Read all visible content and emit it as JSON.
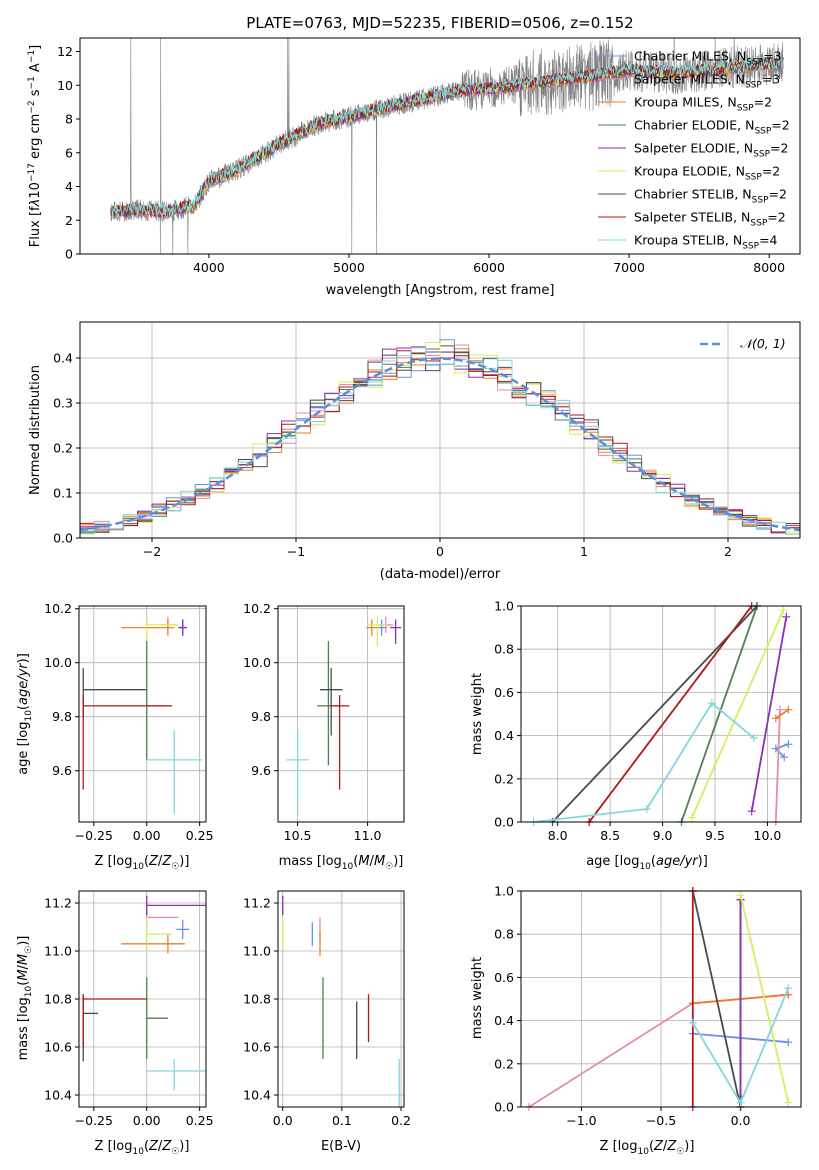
{
  "title": "PLATE=0763, MJD=52235, FIBERID=0506, z=0.152",
  "models": [
    {
      "name": "Chabrier MILES",
      "nssp": "3",
      "color": "#6f8fe0"
    },
    {
      "name": "Salpeter MILES",
      "nssp": "3",
      "color": "#e68ab4"
    },
    {
      "name": "Kroupa MILES",
      "nssp": "2",
      "color": "#ee7e2e"
    },
    {
      "name": "Chabrier ELODIE",
      "nssp": "2",
      "color": "#4f7f4f"
    },
    {
      "name": "Salpeter ELODIE",
      "nssp": "2",
      "color": "#8c2fb0"
    },
    {
      "name": "Kroupa ELODIE",
      "nssp": "2",
      "color": "#d8ec5c"
    },
    {
      "name": "Chabrier STELIB",
      "nssp": "2",
      "color": "#4a4a4a"
    },
    {
      "name": "Salpeter STELIB",
      "nssp": "2",
      "color": "#b01818"
    },
    {
      "name": "Kroupa STELIB",
      "nssp": "4",
      "color": "#7fd8dc"
    }
  ],
  "chart_data": [
    {
      "id": "spectrum",
      "type": "line",
      "xlabel": "wavelength [Angstrom, rest frame]",
      "ylabel": "Flux [f_λ 10^-17 erg cm^-2 s^-1 A^-1]",
      "xlim": [
        3080,
        8220
      ],
      "ylim": [
        0,
        12.8
      ],
      "xticks": [
        4000,
        5000,
        6000,
        7000,
        8000
      ],
      "yticks": [
        0,
        2,
        4,
        6,
        8,
        10,
        12
      ],
      "data_color": "#808080",
      "continuum": {
        "x": [
          3300,
          3500,
          3700,
          3900,
          4000,
          4200,
          4500,
          4800,
          5000,
          5200,
          5500,
          5800,
          6000,
          6200,
          6500,
          6800,
          7000,
          7300,
          7600,
          7900,
          8100
        ],
        "y": [
          2.5,
          2.6,
          2.5,
          2.9,
          4.3,
          5.0,
          6.5,
          7.8,
          8.1,
          8.6,
          9.1,
          9.7,
          9.8,
          10.0,
          10.3,
          10.6,
          10.9,
          10.7,
          10.9,
          11.2,
          11.3
        ]
      },
      "grid": false
    },
    {
      "id": "residuals",
      "type": "histogram",
      "xlabel": "(data-model)/error",
      "ylabel": "Normed distribution",
      "xlim": [
        -2.5,
        2.5
      ],
      "ylim": [
        0,
        0.48
      ],
      "xticks": [
        -2,
        -1,
        0,
        1,
        2
      ],
      "yticks": [
        0,
        0.1,
        0.2,
        0.3,
        0.4
      ],
      "bin_width": 0.1,
      "reference_label": "N(0,1)",
      "reference_color": "#5b8fdc",
      "grid": true
    },
    {
      "id": "age-vs-Z",
      "type": "errorbar",
      "xlabel": "Z [log10(Z/Z☉)]",
      "ylabel": "age [log10(age/yr)]",
      "xlim": [
        -0.32,
        0.28
      ],
      "ylim": [
        9.41,
        10.21
      ],
      "xticks": [
        -0.25,
        0.0,
        0.25
      ],
      "yticks": [
        9.6,
        9.8,
        10.0,
        10.2
      ],
      "points": [
        {
          "model": 0,
          "x": 0.17,
          "y": 10.13,
          "xerr": [
            0.02,
            0.02
          ],
          "yerr": [
            0.03,
            0.03
          ]
        },
        {
          "model": 1,
          "x": 0.1,
          "y": 10.14,
          "xerr": [
            0.04,
            0.04
          ],
          "yerr": [
            0.03,
            0.03
          ]
        },
        {
          "model": 2,
          "x": 0.1,
          "y": 10.13,
          "xerr": [
            0.22,
            0.03
          ],
          "yerr": [
            0.03,
            0.03
          ]
        },
        {
          "model": 3,
          "x": 0.0,
          "y": 9.84,
          "xerr": [
            0.0,
            0.1
          ],
          "yerr": [
            0.2,
            0.24
          ]
        },
        {
          "model": 4,
          "x": 0.17,
          "y": 10.13,
          "xerr": [
            0.02,
            0.02
          ],
          "yerr": [
            0.03,
            0.03
          ]
        },
        {
          "model": 5,
          "x": 0.0,
          "y": 10.14,
          "xerr": [
            0.0,
            0.15
          ],
          "yerr": [
            0.06,
            0.03
          ]
        },
        {
          "model": 6,
          "x": -0.3,
          "y": 9.9,
          "xerr": [
            0.0,
            0.3
          ],
          "yerr": [
            0.1,
            0.08
          ]
        },
        {
          "model": 7,
          "x": -0.3,
          "y": 9.84,
          "xerr": [
            0.0,
            0.42
          ],
          "yerr": [
            0.31,
            0.04
          ]
        },
        {
          "model": 8,
          "x": 0.13,
          "y": 9.64,
          "xerr": [
            0.13,
            0.13
          ],
          "yerr": [
            0.2,
            0.11
          ]
        }
      ],
      "grid": true
    },
    {
      "id": "age-vs-mass",
      "type": "errorbar",
      "xlabel": "mass [log10(M/M☉)]",
      "ylabel": "",
      "xlim": [
        10.36,
        11.26
      ],
      "ylim": [
        9.41,
        10.21
      ],
      "xticks": [
        10.5,
        11.0
      ],
      "yticks": [
        9.6,
        9.8,
        10.0,
        10.2
      ],
      "points": [
        {
          "model": 0,
          "x": 11.1,
          "y": 10.13,
          "xerr": [
            0.04,
            0.04
          ],
          "yerr": [
            0.03,
            0.03
          ]
        },
        {
          "model": 1,
          "x": 11.13,
          "y": 10.14,
          "xerr": [
            0.05,
            0.05
          ],
          "yerr": [
            0.03,
            0.03
          ]
        },
        {
          "model": 2,
          "x": 11.03,
          "y": 10.13,
          "xerr": [
            0.04,
            0.04
          ],
          "yerr": [
            0.03,
            0.03
          ]
        },
        {
          "model": 3,
          "x": 10.72,
          "y": 9.84,
          "xerr": [
            0.08,
            0.08
          ],
          "yerr": [
            0.22,
            0.24
          ]
        },
        {
          "model": 4,
          "x": 11.2,
          "y": 10.13,
          "xerr": [
            0.04,
            0.04
          ],
          "yerr": [
            0.06,
            0.03
          ]
        },
        {
          "model": 5,
          "x": 11.07,
          "y": 10.14,
          "xerr": [
            0.07,
            0.07
          ],
          "yerr": [
            0.08,
            0.03
          ]
        },
        {
          "model": 6,
          "x": 10.74,
          "y": 9.9,
          "xerr": [
            0.08,
            0.08
          ],
          "yerr": [
            0.17,
            0.08
          ]
        },
        {
          "model": 7,
          "x": 10.8,
          "y": 9.84,
          "xerr": [
            0.07,
            0.07
          ],
          "yerr": [
            0.31,
            0.04
          ]
        },
        {
          "model": 8,
          "x": 10.5,
          "y": 9.64,
          "xerr": [
            0.08,
            0.08
          ],
          "yerr": [
            0.2,
            0.11
          ]
        }
      ],
      "grid": true
    },
    {
      "id": "weight-vs-age",
      "type": "line",
      "xlabel": "age [log10(age/yr)]",
      "ylabel": "mass weight",
      "xlim": [
        7.65,
        10.32
      ],
      "ylim": [
        0,
        1
      ],
      "xticks": [
        8.0,
        8.5,
        9.0,
        9.5,
        10.0
      ],
      "yticks": [
        0,
        0.2,
        0.4,
        0.6,
        0.8,
        1.0
      ],
      "series": [
        {
          "model": 0,
          "x": [
            10.2,
            10.08,
            10.16
          ],
          "y": [
            0.36,
            0.34,
            0.3
          ]
        },
        {
          "model": 1,
          "x": [
            10.12,
            10.08
          ],
          "y": [
            0.52,
            0.0
          ]
        },
        {
          "model": 2,
          "x": [
            10.2,
            10.08
          ],
          "y": [
            0.52,
            0.48
          ]
        },
        {
          "model": 3,
          "x": [
            9.18,
            9.9
          ],
          "y": [
            0.0,
            1.0
          ]
        },
        {
          "model": 4,
          "x": [
            9.85,
            10.18
          ],
          "y": [
            0.05,
            0.95
          ]
        },
        {
          "model": 5,
          "x": [
            9.28,
            10.15
          ],
          "y": [
            0.02,
            0.98
          ]
        },
        {
          "model": 6,
          "x": [
            7.95,
            9.9
          ],
          "y": [
            0.0,
            1.0
          ]
        },
        {
          "model": 7,
          "x": [
            8.3,
            9.85
          ],
          "y": [
            0.0,
            1.0
          ]
        },
        {
          "model": 8,
          "x": [
            7.77,
            8.85,
            9.47,
            9.87
          ],
          "y": [
            0.0,
            0.06,
            0.55,
            0.39
          ]
        }
      ],
      "grid": true
    },
    {
      "id": "mass-vs-Z",
      "type": "errorbar",
      "xlabel": "Z [log10(Z/Z☉)]",
      "ylabel": "mass [log10(M/M☉)]",
      "xlim": [
        -0.32,
        0.28
      ],
      "ylim": [
        10.35,
        11.25
      ],
      "xticks": [
        -0.25,
        0.0,
        0.25
      ],
      "yticks": [
        10.4,
        10.6,
        10.8,
        11.0,
        11.2
      ],
      "points": [
        {
          "model": 0,
          "x": 0.17,
          "y": 11.09,
          "xerr": [
            0.03,
            0.03
          ],
          "yerr": [
            0.04,
            0.04
          ]
        },
        {
          "model": 1,
          "x": 0.0,
          "y": 11.14,
          "xerr": [
            0.0,
            0.15
          ],
          "yerr": [
            0.04,
            0.04
          ]
        },
        {
          "model": 2,
          "x": 0.1,
          "y": 11.03,
          "xerr": [
            0.22,
            0.08
          ],
          "yerr": [
            0.04,
            0.04
          ]
        },
        {
          "model": 3,
          "x": 0.0,
          "y": 10.72,
          "xerr": [
            0.0,
            0.1
          ],
          "yerr": [
            0.17,
            0.17
          ]
        },
        {
          "model": 4,
          "x": 0.0,
          "y": 11.19,
          "xerr": [
            0.0,
            0.3
          ],
          "yerr": [
            0.04,
            0.04
          ]
        },
        {
          "model": 5,
          "x": 0.0,
          "y": 11.07,
          "xerr": [
            0.0,
            0.12
          ],
          "yerr": [
            0.07,
            0.07
          ]
        },
        {
          "model": 6,
          "x": -0.3,
          "y": 10.74,
          "xerr": [
            0.0,
            0.07
          ],
          "yerr": [
            0.2,
            0.08
          ]
        },
        {
          "model": 7,
          "x": -0.3,
          "y": 10.8,
          "xerr": [
            0.0,
            0.3
          ],
          "yerr": [
            0.2,
            0.02
          ]
        },
        {
          "model": 8,
          "x": 0.13,
          "y": 10.5,
          "xerr": [
            0.13,
            0.15
          ],
          "yerr": [
            0.08,
            0.05
          ]
        }
      ],
      "grid": true
    },
    {
      "id": "mass-vs-ebv",
      "type": "errorbar",
      "xlabel": "E(B-V)",
      "ylabel": "",
      "xlim": [
        -0.008,
        0.205
      ],
      "ylim": [
        10.35,
        11.25
      ],
      "xticks": [
        0.0,
        0.1,
        0.2
      ],
      "yticks": [
        10.4,
        10.6,
        10.8,
        11.0,
        11.2
      ],
      "points": [
        {
          "model": 0,
          "x": 0.05,
          "y": 11.07,
          "yerr": [
            0.05,
            0.05
          ]
        },
        {
          "model": 1,
          "x": 0.063,
          "y": 11.09,
          "yerr": [
            0.05,
            0.05
          ]
        },
        {
          "model": 2,
          "x": 0.063,
          "y": 11.03,
          "yerr": [
            0.05,
            0.05
          ]
        },
        {
          "model": 3,
          "x": 0.068,
          "y": 10.72,
          "yerr": [
            0.17,
            0.17
          ]
        },
        {
          "model": 4,
          "x": 0.0,
          "y": 11.19,
          "yerr": [
            0.04,
            0.04
          ]
        },
        {
          "model": 5,
          "x": 0.0,
          "y": 11.07,
          "yerr": [
            0.07,
            0.07
          ]
        },
        {
          "model": 6,
          "x": 0.125,
          "y": 10.67,
          "yerr": [
            0.12,
            0.12
          ]
        },
        {
          "model": 7,
          "x": 0.145,
          "y": 10.72,
          "yerr": [
            0.1,
            0.1
          ]
        },
        {
          "model": 8,
          "x": 0.197,
          "y": 10.45,
          "yerr": [
            0.1,
            0.1
          ]
        }
      ],
      "grid": true
    },
    {
      "id": "weight-vs-Z",
      "type": "line",
      "xlabel": "Z [log10(Z/Z☉)]",
      "ylabel": "mass weight",
      "xlim": [
        -1.38,
        0.38
      ],
      "ylim": [
        0,
        1
      ],
      "xticks": [
        -1.0,
        -0.5,
        0.0
      ],
      "yticks": [
        0,
        0.2,
        0.4,
        0.6,
        0.8,
        1.0
      ],
      "series": [
        {
          "model": 0,
          "x": [
            -0.3,
            0.3
          ],
          "y": [
            0.34,
            0.3
          ]
        },
        {
          "model": 1,
          "x": [
            -1.33,
            -0.3,
            0.3
          ],
          "y": [
            0.0,
            0.48,
            0.52
          ]
        },
        {
          "model": 2,
          "x": [
            -0.3,
            0.3
          ],
          "y": [
            0.48,
            0.52
          ]
        },
        {
          "model": 3,
          "x": [
            0.0,
            0.0
          ],
          "y": [
            0.0,
            0.96
          ]
        },
        {
          "model": 4,
          "x": [
            0.0,
            0.0
          ],
          "y": [
            0.05,
            0.96
          ]
        },
        {
          "model": 5,
          "x": [
            0.0,
            0.3
          ],
          "y": [
            0.98,
            0.02
          ]
        },
        {
          "model": 6,
          "x": [
            -0.3,
            0.0
          ],
          "y": [
            1.0,
            0.0
          ]
        },
        {
          "model": 7,
          "x": [
            -0.3,
            -0.3
          ],
          "y": [
            0.0,
            1.0
          ]
        },
        {
          "model": 8,
          "x": [
            -0.3,
            0.0,
            0.3
          ],
          "y": [
            0.39,
            0.02,
            0.55
          ]
        }
      ],
      "grid": true
    }
  ]
}
